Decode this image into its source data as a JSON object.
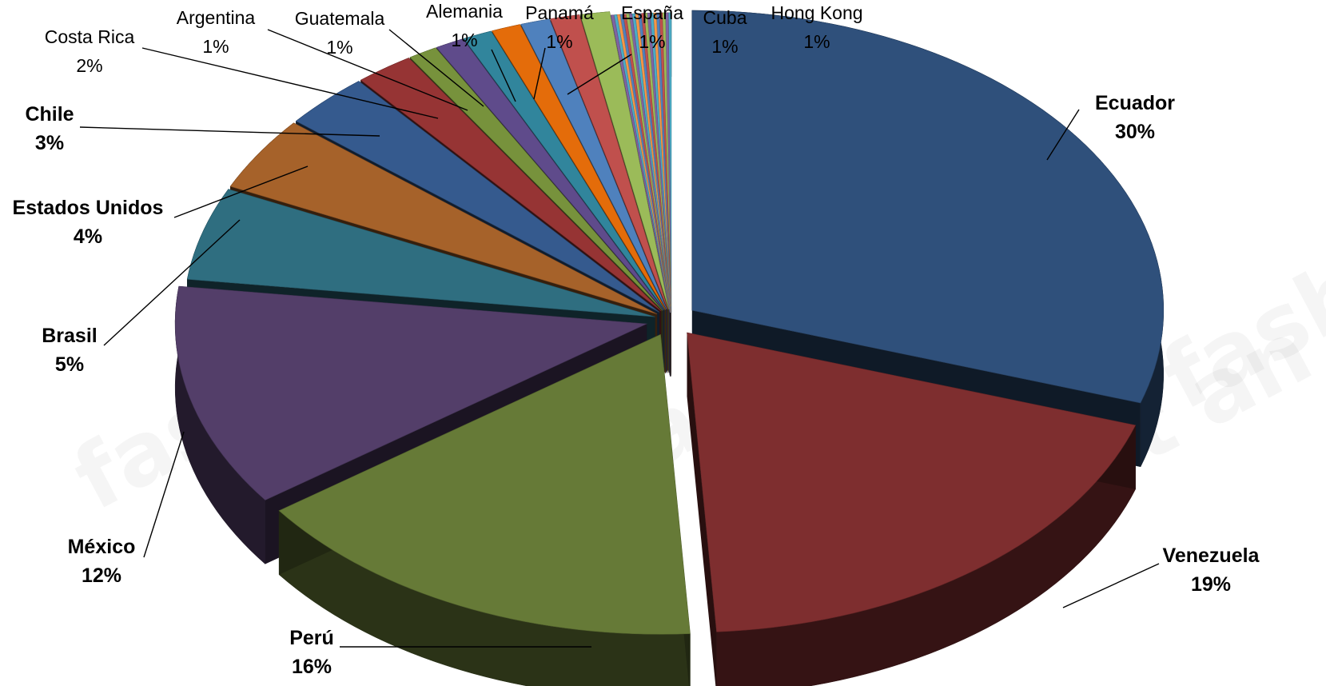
{
  "chart_data": {
    "type": "pie",
    "title": "",
    "slices": [
      {
        "label": "Ecuador",
        "pct_label": "30%",
        "value": 30,
        "color": "#2F507B"
      },
      {
        "label": "Venezuela",
        "pct_label": "19%",
        "value": 19,
        "color": "#7E2E2F"
      },
      {
        "label": "Perú",
        "pct_label": "16%",
        "value": 16,
        "color": "#667A37"
      },
      {
        "label": "México",
        "pct_label": "12%",
        "value": 12,
        "color": "#533E69"
      },
      {
        "label": "Brasil",
        "pct_label": "5%",
        "value": 5,
        "color": "#2F6E80"
      },
      {
        "label": "Estados Unidos",
        "pct_label": "4%",
        "value": 4,
        "color": "#A6622A"
      },
      {
        "label": "Chile",
        "pct_label": "3%",
        "value": 3,
        "color": "#355A8E"
      },
      {
        "label": "Costa Rica",
        "pct_label": "2%",
        "value": 2,
        "color": "#963434"
      },
      {
        "label": "Argentina",
        "pct_label": "1%",
        "value": 1,
        "color": "#77923C"
      },
      {
        "label": "Guatemala",
        "pct_label": "1%",
        "value": 1,
        "color": "#5F4B8B"
      },
      {
        "label": "Alemania",
        "pct_label": "1%",
        "value": 1,
        "color": "#31859C"
      },
      {
        "label": "Panamá",
        "pct_label": "1%",
        "value": 1,
        "color": "#E46C0A"
      },
      {
        "label": "España",
        "pct_label": "1%",
        "value": 1,
        "color": "#4F81BD"
      },
      {
        "label": "Cuba",
        "pct_label": "1%",
        "value": 1,
        "color": "#C0504D"
      },
      {
        "label": "Hong Kong",
        "pct_label": "1%",
        "value": 1,
        "color": "#9BBB59"
      }
    ],
    "other_slices_colors": [
      "#8064A2",
      "#4BACC6",
      "#F79646",
      "#4F81BD",
      "#C0504D",
      "#9BBB59",
      "#8064A2",
      "#4BACC6",
      "#F79646",
      "#4F81BD",
      "#C0504D",
      "#9BBB59",
      "#8064A2",
      "#4BACC6",
      "#F79646",
      "#4F81BD",
      "#C0504D",
      "#9BBB59",
      "#8064A2",
      "#4BACC6"
    ],
    "legend": "none",
    "style": "3d-exploded-pie"
  }
}
